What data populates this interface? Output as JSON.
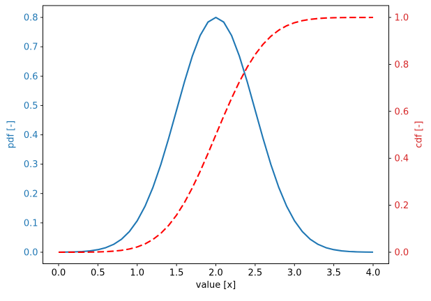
{
  "chart_data": {
    "type": "line",
    "title": "",
    "xlabel": "value [x]",
    "ylabel_left": "pdf [-]",
    "ylabel_right": "cdf [-]",
    "grid": false,
    "legend": "none",
    "x_axis": {
      "lim": [
        0.0,
        4.0
      ],
      "tick_labels": [
        "0.0",
        "0.5",
        "1.0",
        "1.5",
        "2.0",
        "2.5",
        "3.0",
        "3.5",
        "4.0"
      ],
      "tick_values": [
        0.0,
        0.5,
        1.0,
        1.5,
        2.0,
        2.5,
        3.0,
        3.5,
        4.0
      ],
      "label_color": "#000000"
    },
    "y_axis_left": {
      "lim": [
        0.0,
        0.8
      ],
      "tick_labels": [
        "0.0",
        "0.1",
        "0.2",
        "0.3",
        "0.4",
        "0.5",
        "0.6",
        "0.7",
        "0.8"
      ],
      "tick_values": [
        0.0,
        0.1,
        0.2,
        0.3,
        0.4,
        0.5,
        0.6,
        0.7,
        0.8
      ],
      "label_color": "#1f77b4"
    },
    "y_axis_right": {
      "lim": [
        0.0,
        1.0
      ],
      "tick_labels": [
        "0.0",
        "0.2",
        "0.4",
        "0.6",
        "0.8",
        "1.0"
      ],
      "tick_values": [
        0.0,
        0.2,
        0.4,
        0.6,
        0.8,
        1.0
      ],
      "label_color": "#d62728"
    },
    "x": [
      0.0,
      0.1,
      0.2,
      0.3,
      0.4,
      0.5,
      0.6,
      0.7,
      0.8,
      0.9,
      1.0,
      1.1,
      1.2,
      1.3,
      1.4,
      1.5,
      1.6,
      1.7,
      1.8,
      1.9,
      2.0,
      2.1,
      2.2,
      2.3,
      2.4,
      2.5,
      2.6,
      2.7,
      2.8,
      2.9,
      3.0,
      3.1,
      3.2,
      3.3,
      3.4,
      3.5,
      3.6,
      3.7,
      3.8,
      3.9,
      4.0
    ],
    "series": [
      {
        "name": "pdf",
        "axis": "left",
        "color": "#1f77b4",
        "style": "solid",
        "values": [
          0.0003,
          0.0006,
          0.0012,
          0.0024,
          0.0046,
          0.0087,
          0.0155,
          0.0268,
          0.0442,
          0.0703,
          0.1071,
          0.157,
          0.2209,
          0.2987,
          0.3881,
          0.4839,
          0.5799,
          0.6676,
          0.7382,
          0.7841,
          0.8,
          0.7841,
          0.7382,
          0.6676,
          0.5799,
          0.4839,
          0.3881,
          0.2987,
          0.2209,
          0.157,
          0.1071,
          0.0703,
          0.0442,
          0.0268,
          0.0155,
          0.0087,
          0.0046,
          0.0024,
          0.0012,
          0.0006,
          0.0003
        ]
      },
      {
        "name": "cdf",
        "axis": "right",
        "color": "#ff0000",
        "style": "dashed",
        "values": [
          0.0,
          0.0001,
          0.0002,
          0.0003,
          0.0007,
          0.0013,
          0.0025,
          0.0046,
          0.0081,
          0.0137,
          0.0225,
          0.0355,
          0.0543,
          0.0802,
          0.1144,
          0.158,
          0.2112,
          0.2737,
          0.3442,
          0.4205,
          0.5,
          0.5795,
          0.6558,
          0.7263,
          0.7888,
          0.842,
          0.8856,
          0.9198,
          0.9457,
          0.9645,
          0.9775,
          0.9863,
          0.9919,
          0.9954,
          0.9975,
          0.9987,
          0.9993,
          0.9997,
          0.9998,
          0.9999,
          1.0
        ]
      }
    ]
  }
}
